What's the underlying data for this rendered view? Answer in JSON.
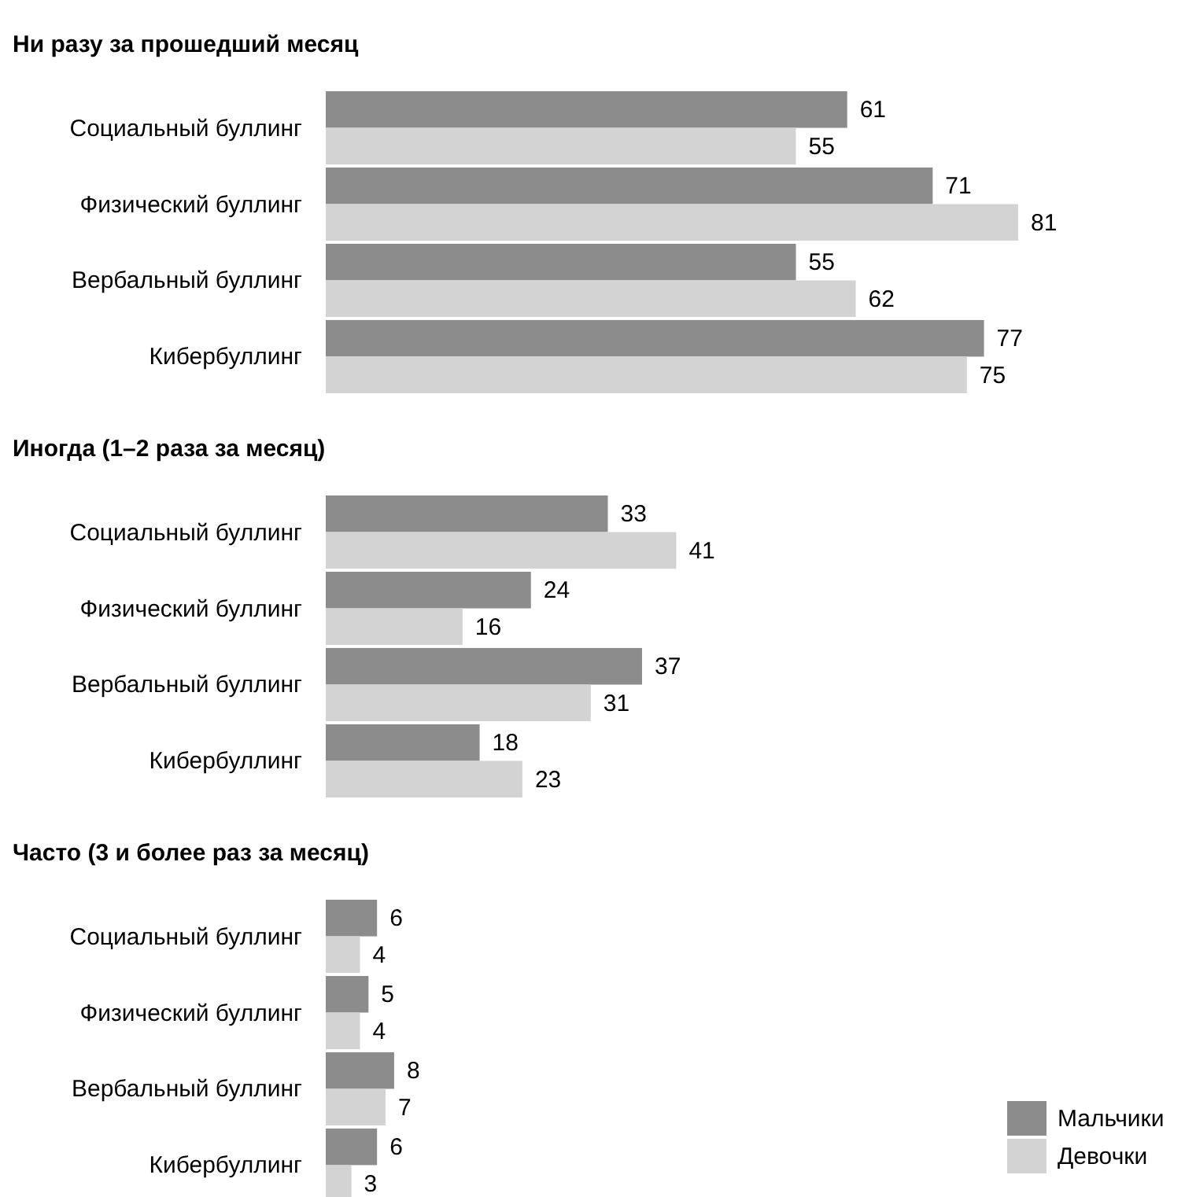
{
  "chart_data": [
    {
      "type": "bar",
      "orientation": "horizontal",
      "title": "Ни разу за прошедший месяц",
      "categories": [
        "Социальный буллинг",
        "Физический буллинг",
        "Вербальный буллинг",
        "Кибербуллинг"
      ],
      "series": [
        {
          "color": "#8c8c8c",
          "values": [
            61,
            71,
            55,
            77
          ]
        },
        {
          "color": "#d3d3d3",
          "values": [
            55,
            81,
            62,
            75
          ]
        }
      ],
      "tick_labels": "y",
      "data_labels": true,
      "legend": false
    },
    {
      "type": "bar",
      "orientation": "horizontal",
      "title": "Иногда (1–2 раза за месяц)",
      "categories": [
        "Социальный буллинг",
        "Физический буллинг",
        "Вербальный буллинг",
        "Кибербуллинг"
      ],
      "series": [
        {
          "color": "#8c8c8c",
          "values": [
            33,
            24,
            37,
            18
          ]
        },
        {
          "color": "#d3d3d3",
          "values": [
            41,
            16,
            31,
            23
          ]
        }
      ],
      "tick_labels": "y",
      "data_labels": true,
      "legend": false
    },
    {
      "type": "bar",
      "orientation": "horizontal",
      "title": "Часто (3 и более раз за месяц)",
      "categories": [
        "Социальный буллинг",
        "Физический буллинг",
        "Вербальный буллинг",
        "Кибербуллинг"
      ],
      "series": [
        {
          "name": "Мальчики",
          "color": "#8c8c8c",
          "values": [
            6,
            5,
            8,
            6
          ]
        },
        {
          "name": "Девочки",
          "color": "#d3d3d3",
          "values": [
            4,
            4,
            7,
            3
          ]
        }
      ],
      "tick_labels": "y",
      "data_labels": true,
      "legend": "bottom right"
    }
  ]
}
